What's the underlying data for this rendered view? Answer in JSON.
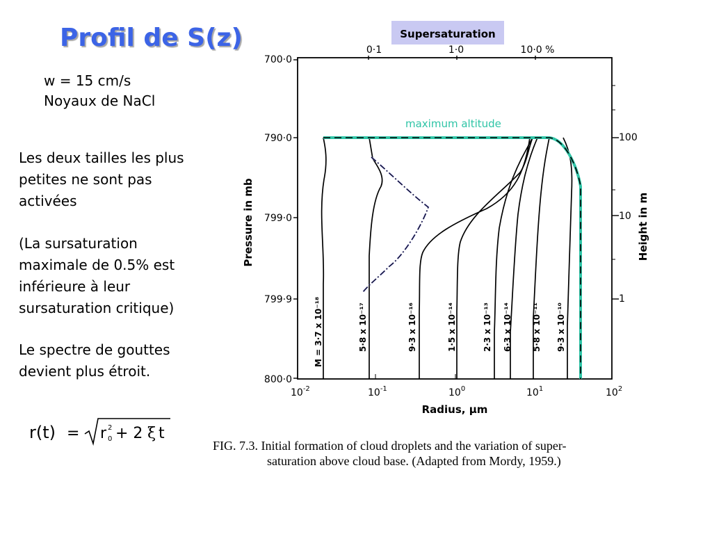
{
  "slide": {
    "title": "Profil de S(z)",
    "params": [
      "w = 15 cm/s",
      "Noyaux de NaCl"
    ],
    "notes": [
      "Les deux tailles les plus petites ne sont pas activées",
      "(La sursaturation maximale de 0.5% est inférieure à leur sursaturation critique)",
      "Le spectre de gouttes devient plus étroit."
    ],
    "formula": {
      "lhs": "r(t)",
      "eq": "=",
      "radicand_r": "r",
      "radicand_sup": "2",
      "radicand_sub": "0",
      "radicand_plus": "+ 2",
      "xi": "ξ",
      "t": "t"
    }
  },
  "figure": {
    "supersat_label": "Supersaturation",
    "supersat_ticks": [
      "0·1",
      "1·0",
      "10·0 %"
    ],
    "max_altitude_label": "maximum altitude",
    "left_axis_label": "Pressure  in  mb",
    "left_ticks": [
      "700·0",
      "790·0",
      "799·0",
      "799·9",
      "800·0"
    ],
    "right_axis_label": "Height  in  m",
    "right_ticks": [
      "100",
      "10",
      "1"
    ],
    "x_axis_label": "Radius,  μm",
    "x_ticks": [
      {
        "base": "10",
        "exp": "-2"
      },
      {
        "base": "10",
        "exp": "-1"
      },
      {
        "base": "10",
        "exp": "0"
      },
      {
        "base": "10",
        "exp": "1"
      },
      {
        "base": "10",
        "exp": "2"
      }
    ],
    "curve_labels": [
      "M = 3·7 x 10⁻¹⁸",
      "5·8 x 10⁻¹⁷",
      "9·3 x 10⁻¹⁶",
      "1·5 x 10⁻¹⁴",
      "2·3 x 10⁻¹³",
      "6·3 x 10⁻¹⁴",
      "5·8 x 10⁻¹¹",
      "9·3 x 10⁻¹⁰"
    ],
    "colors": {
      "title": "#3c64e6",
      "supersat_box": "#c9c9f2",
      "max_altitude_curve": "#2ec4a6",
      "supersat_curve": "#7070d0"
    }
  },
  "caption": {
    "line1": "FIG. 7.3.  Initial formation of cloud droplets and the variation of super-",
    "line2": "saturation above cloud base. (Adapted from Mordy, 1959.)"
  }
}
